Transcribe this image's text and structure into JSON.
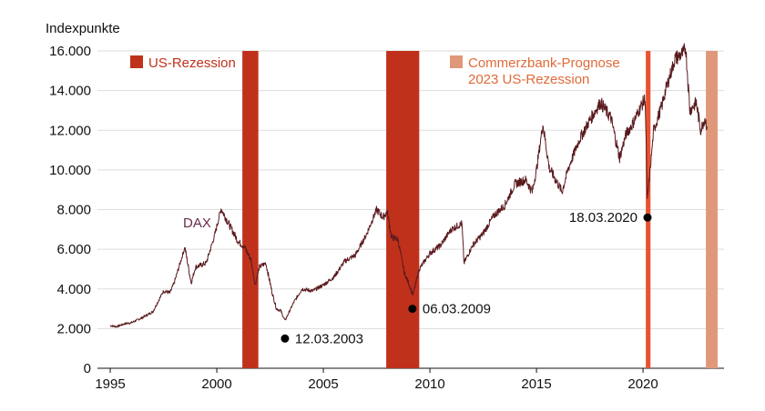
{
  "chart_data": {
    "type": "line",
    "ylabel": "Indexpunkte",
    "xlim": [
      1994.4,
      2023.8
    ],
    "ylim": [
      0,
      16000
    ],
    "x_ticks": [
      1995,
      2000,
      2005,
      2010,
      2015,
      2020
    ],
    "x_tick_labels": [
      "1995",
      "2000",
      "2005",
      "2010",
      "2015",
      "2020"
    ],
    "y_ticks": [
      0,
      2000,
      4000,
      6000,
      8000,
      10000,
      12000,
      14000,
      16000
    ],
    "y_tick_labels": [
      "0",
      "2.000",
      "4.000",
      "6.000",
      "8.000",
      "10.000",
      "12.000",
      "14.000",
      "16.000"
    ],
    "grid": "horizontal",
    "series": [
      {
        "name": "DAX",
        "color": "#5a1a1e",
        "points": [
          [
            1995.0,
            2150
          ],
          [
            1995.3,
            2100
          ],
          [
            1995.7,
            2250
          ],
          [
            1996.0,
            2300
          ],
          [
            1996.5,
            2550
          ],
          [
            1997.0,
            2850
          ],
          [
            1997.5,
            3900
          ],
          [
            1997.8,
            3800
          ],
          [
            1998.0,
            4300
          ],
          [
            1998.5,
            6100
          ],
          [
            1998.8,
            4300
          ],
          [
            1999.0,
            5100
          ],
          [
            1999.5,
            5300
          ],
          [
            1999.9,
            6700
          ],
          [
            2000.2,
            8050
          ],
          [
            2000.6,
            7200
          ],
          [
            2001.0,
            6400
          ],
          [
            2001.3,
            6100
          ],
          [
            2001.6,
            5500
          ],
          [
            2001.8,
            4200
          ],
          [
            2002.0,
            5100
          ],
          [
            2002.3,
            5300
          ],
          [
            2002.6,
            3800
          ],
          [
            2002.8,
            3000
          ],
          [
            2003.0,
            2900
          ],
          [
            2003.2,
            2400
          ],
          [
            2003.6,
            3300
          ],
          [
            2004.0,
            4000
          ],
          [
            2004.5,
            3900
          ],
          [
            2005.0,
            4200
          ],
          [
            2005.5,
            4600
          ],
          [
            2006.0,
            5400
          ],
          [
            2006.5,
            5700
          ],
          [
            2007.0,
            6700
          ],
          [
            2007.5,
            8000
          ],
          [
            2007.8,
            7600
          ],
          [
            2008.0,
            7900
          ],
          [
            2008.2,
            6600
          ],
          [
            2008.5,
            6500
          ],
          [
            2008.8,
            4800
          ],
          [
            2009.0,
            4300
          ],
          [
            2009.2,
            3700
          ],
          [
            2009.5,
            5000
          ],
          [
            2010.0,
            5800
          ],
          [
            2010.5,
            6200
          ],
          [
            2011.0,
            7000
          ],
          [
            2011.5,
            7300
          ],
          [
            2011.6,
            5300
          ],
          [
            2012.0,
            6200
          ],
          [
            2012.5,
            6800
          ],
          [
            2013.0,
            7700
          ],
          [
            2013.5,
            8200
          ],
          [
            2014.0,
            9300
          ],
          [
            2014.5,
            9500
          ],
          [
            2014.8,
            8900
          ],
          [
            2015.0,
            10000
          ],
          [
            2015.3,
            12300
          ],
          [
            2015.6,
            10100
          ],
          [
            2016.0,
            9300
          ],
          [
            2016.2,
            8900
          ],
          [
            2016.5,
            10100
          ],
          [
            2017.0,
            11500
          ],
          [
            2017.5,
            12500
          ],
          [
            2018.0,
            13400
          ],
          [
            2018.5,
            12600
          ],
          [
            2018.9,
            10600
          ],
          [
            2019.2,
            11800
          ],
          [
            2019.5,
            12300
          ],
          [
            2019.9,
            13200
          ],
          [
            2020.1,
            13600
          ],
          [
            2020.2,
            8400
          ],
          [
            2020.5,
            12000
          ],
          [
            2020.9,
            13300
          ],
          [
            2021.0,
            13800
          ],
          [
            2021.5,
            15600
          ],
          [
            2021.9,
            15900
          ],
          [
            2022.0,
            16200
          ],
          [
            2022.2,
            13000
          ],
          [
            2022.5,
            13400
          ],
          [
            2022.7,
            12000
          ],
          [
            2022.9,
            12600
          ],
          [
            2023.0,
            12200
          ]
        ]
      }
    ],
    "shaded_periods": [
      {
        "label": "US-Rezession",
        "start": 2001.2,
        "end": 2001.95,
        "color": "#c0311b"
      },
      {
        "label": "US-Rezession",
        "start": 2007.95,
        "end": 2009.5,
        "color": "#c0311b"
      },
      {
        "label": "US-Rezession",
        "start": 2020.13,
        "end": 2020.35,
        "color": "#e8532f"
      },
      {
        "label": "Commerzbank-Prognose 2023 US-Rezession",
        "start": 2022.95,
        "end": 2023.5,
        "color": "#e0987a"
      }
    ],
    "annotations": [
      {
        "label": "12.03.2003",
        "x": 2003.2,
        "y": 1500
      },
      {
        "label": "06.03.2009",
        "x": 2009.18,
        "y": 3000
      },
      {
        "label": "18.03.2020",
        "x": 2020.21,
        "y": 7600
      }
    ],
    "legend": [
      {
        "label": "US-Rezession",
        "color": "#c0311b"
      },
      {
        "label": "Commerzbank-Prognose 2023 US-Rezession",
        "label_lines": [
          "Commerzbank-Prognose",
          "2023 US-Rezession"
        ],
        "color": "#e0987a",
        "text_color": "#e06a3a"
      }
    ],
    "series_label": {
      "text": "DAX",
      "color": "#6a2a4a"
    }
  }
}
